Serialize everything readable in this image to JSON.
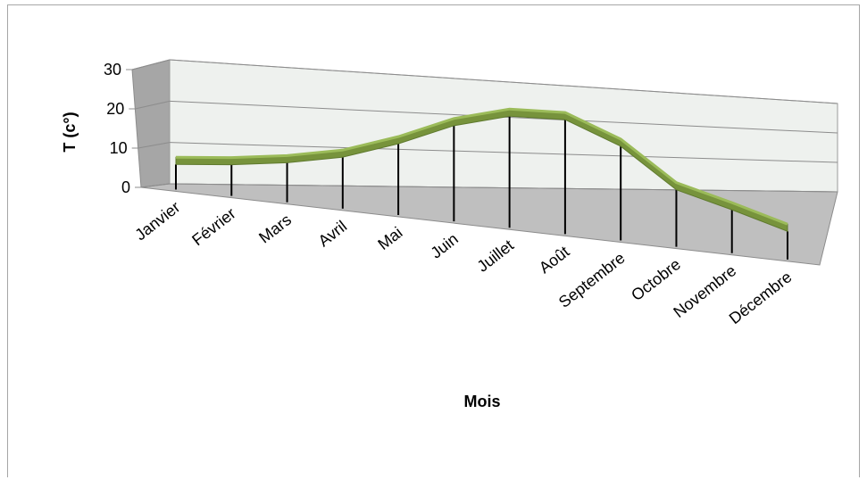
{
  "chart_data": {
    "type": "line",
    "title": "",
    "xlabel": "Mois",
    "ylabel": "T (c°)",
    "categories": [
      "Janvier",
      "Février",
      "Mars",
      "Avril",
      "Mai",
      "Juin",
      "Juillet",
      "Août",
      "Septembre",
      "Octobre",
      "Novembre",
      "Décembre"
    ],
    "series": [
      {
        "values": [
          7.2,
          8.3,
          10.0,
          12.6,
          17.2,
          23.0,
          26.6,
          26.9,
          21.3,
          11.4,
          7.5,
          3.2
        ],
        "color": "#77933c"
      }
    ],
    "ylim": [
      0,
      30
    ],
    "yticks": [
      0,
      10,
      20,
      30
    ],
    "grid": true,
    "legend": "none",
    "style": "3d-line",
    "colors": {
      "line": "#77933c",
      "line_highlight": "#9bbb59",
      "wall": "#eef1ee",
      "floor": "#bfbfbf",
      "side_wall": "#a6a6a6",
      "gridline": "#8c8c8c"
    }
  }
}
